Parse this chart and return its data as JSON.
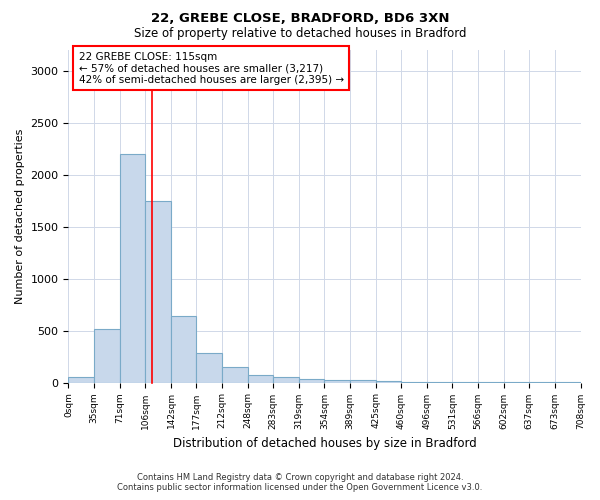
{
  "title1": "22, GREBE CLOSE, BRADFORD, BD6 3XN",
  "title2": "Size of property relative to detached houses in Bradford",
  "xlabel": "Distribution of detached houses by size in Bradford",
  "ylabel": "Number of detached properties",
  "bar_color": "#c8d8eb",
  "bar_edge_color": "#7aaac8",
  "bins": [
    0,
    35,
    71,
    106,
    142,
    177,
    212,
    248,
    283,
    319,
    354,
    389,
    425,
    460,
    496,
    531,
    566,
    602,
    637,
    673,
    708
  ],
  "values": [
    50,
    520,
    2200,
    1750,
    640,
    280,
    150,
    75,
    50,
    35,
    25,
    20,
    15,
    10,
    8,
    6,
    5,
    4,
    3,
    2
  ],
  "tick_labels": [
    "0sqm",
    "35sqm",
    "71sqm",
    "106sqm",
    "142sqm",
    "177sqm",
    "212sqm",
    "248sqm",
    "283sqm",
    "319sqm",
    "354sqm",
    "389sqm",
    "425sqm",
    "460sqm",
    "496sqm",
    "531sqm",
    "566sqm",
    "602sqm",
    "637sqm",
    "673sqm",
    "708sqm"
  ],
  "red_line_x": 115,
  "ylim": [
    0,
    3200
  ],
  "annotation_line1": "22 GREBE CLOSE: 115sqm",
  "annotation_line2": "← 57% of detached houses are smaller (3,217)",
  "annotation_line3": "42% of semi-detached houses are larger (2,395) →",
  "footnote1": "Contains HM Land Registry data © Crown copyright and database right 2024.",
  "footnote2": "Contains public sector information licensed under the Open Government Licence v3.0.",
  "background_color": "#ffffff",
  "grid_color": "#d0d8e8"
}
